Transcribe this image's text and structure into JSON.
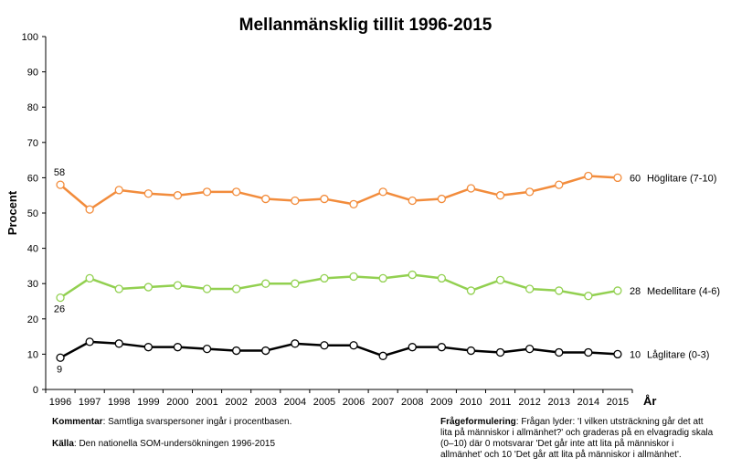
{
  "chart_data": {
    "type": "line",
    "title": "Mellanmänsklig tillit 1996-2015",
    "ylabel": "Procent",
    "xlabel": "År",
    "ylim": [
      0,
      100
    ],
    "yticks": [
      0,
      10,
      20,
      30,
      40,
      50,
      60,
      70,
      80,
      90,
      100
    ],
    "x": [
      "1996",
      "1997",
      "1998",
      "1999",
      "2000",
      "2001",
      "2002",
      "2003",
      "2004",
      "2005",
      "2006",
      "2007",
      "2008",
      "2009",
      "2010",
      "2011",
      "2012",
      "2013",
      "2014",
      "2015"
    ],
    "series": [
      {
        "name": "Höglitare (7-10)",
        "color": "#f28c3c",
        "values": [
          58,
          51,
          56.5,
          55.5,
          55,
          56,
          56,
          54,
          53.5,
          54,
          52.5,
          56,
          53.5,
          54,
          57,
          55,
          56,
          58,
          60.5,
          60
        ],
        "start_label": "58",
        "end_label": "60"
      },
      {
        "name": "Medellitare (4-6)",
        "color": "#92d050",
        "values": [
          26,
          31.5,
          28.5,
          29,
          29.5,
          28.5,
          28.5,
          30,
          30,
          31.5,
          32,
          31.5,
          32.5,
          31.5,
          28,
          31,
          28.5,
          28,
          26.5,
          28
        ],
        "start_label": "26",
        "end_label": "28"
      },
      {
        "name": "Låglitare (0-3)",
        "color": "#000000",
        "values": [
          9,
          13.5,
          13,
          12,
          12,
          11.5,
          11,
          11,
          13,
          12.5,
          12.5,
          9.5,
          12,
          12,
          11,
          10.5,
          11.5,
          10.5,
          10.5,
          10
        ],
        "start_label": "9",
        "end_label": "10"
      }
    ]
  },
  "notes": {
    "kommentar_label": "Kommentar",
    "kommentar_text": ": Samtliga svarspersoner ingår i procentbasen.",
    "kalla_label": "Källa",
    "kalla_text": ": Den nationella SOM-undersökningen 1996-2015",
    "fraga_label": "Frågeformulering",
    "fraga_text": ": Frågan lyder: 'I vilken utsträckning går det att lita på människor i allmänhet?' och graderas på en elvagradig skala (0–10) där 0 motsvarar 'Det går inte att lita på människor i allmänhet' och 10 'Det går att lita på människor i allmänhet'."
  }
}
